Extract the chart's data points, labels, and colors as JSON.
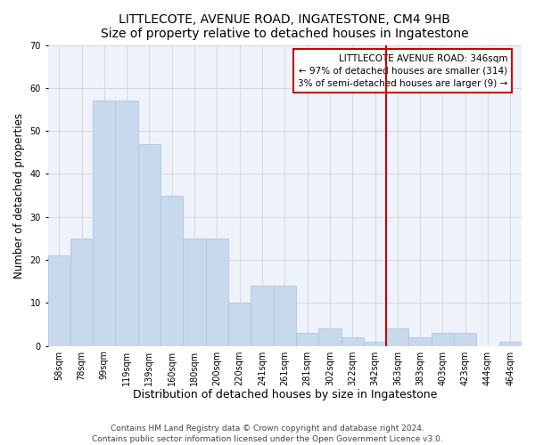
{
  "title": "LITTLECOTE, AVENUE ROAD, INGATESTONE, CM4 9HB",
  "subtitle": "Size of property relative to detached houses in Ingatestone",
  "xlabel": "Distribution of detached houses by size in Ingatestone",
  "ylabel": "Number of detached properties",
  "categories": [
    "58sqm",
    "78sqm",
    "99sqm",
    "119sqm",
    "139sqm",
    "160sqm",
    "180sqm",
    "200sqm",
    "220sqm",
    "241sqm",
    "261sqm",
    "281sqm",
    "302sqm",
    "322sqm",
    "342sqm",
    "363sqm",
    "383sqm",
    "403sqm",
    "423sqm",
    "444sqm",
    "464sqm"
  ],
  "values": [
    21,
    25,
    57,
    57,
    47,
    35,
    25,
    25,
    10,
    14,
    14,
    3,
    4,
    2,
    1,
    4,
    2,
    3,
    3,
    0,
    1
  ],
  "bar_color": "#c9d9ed",
  "bar_edge_color": "#aabfd8",
  "grid_color": "#cccccc",
  "bg_color": "#eef2fb",
  "vline_color": "#cc0000",
  "annotation_line1": "LITTLECOTE AVENUE ROAD: 346sqm",
  "annotation_line2": "← 97% of detached houses are smaller (314)",
  "annotation_line3": "3% of semi-detached houses are larger (9) →",
  "annotation_box_color": "#cc0000",
  "ylim": [
    0,
    70
  ],
  "yticks": [
    0,
    10,
    20,
    30,
    40,
    50,
    60,
    70
  ],
  "title_fontsize": 10,
  "subtitle_fontsize": 9,
  "ylabel_fontsize": 8.5,
  "xlabel_fontsize": 9,
  "tick_fontsize": 7,
  "annotation_fontsize": 7.5,
  "footnote_fontsize": 6.5,
  "footnote": "Contains HM Land Registry data © Crown copyright and database right 2024.\nContains public sector information licensed under the Open Government Licence v3.0."
}
